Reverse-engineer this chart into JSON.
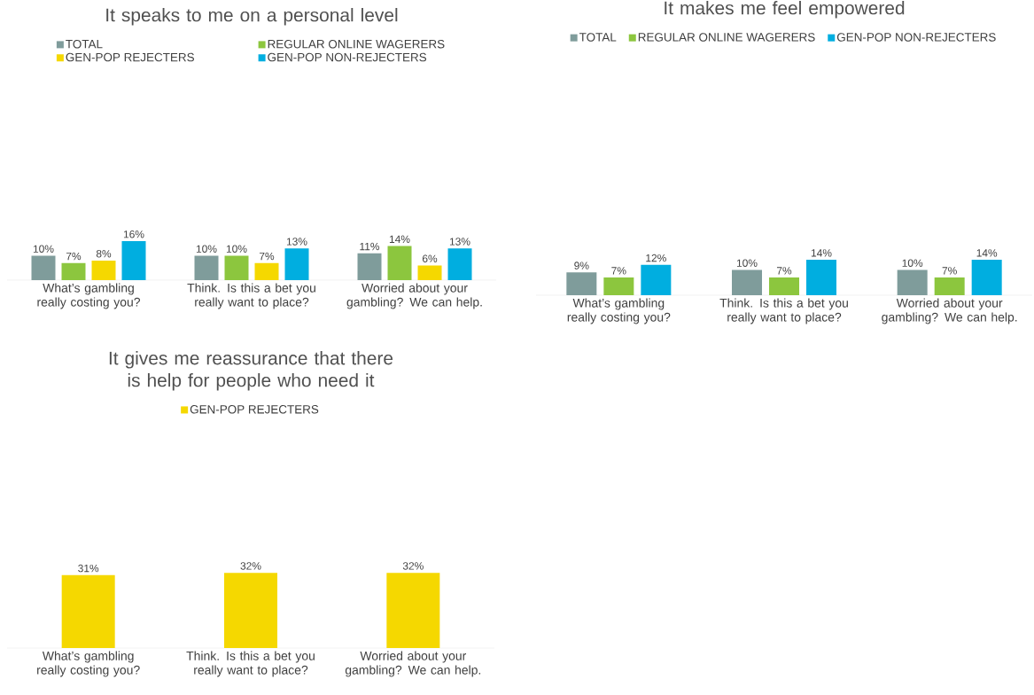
{
  "chart_data": [
    {
      "type": "bar",
      "title": "It speaks to me on a personal level",
      "categories": [
        "What’s gambling really costing you?",
        "Think. Is this a bet you really want to place?",
        "Worried about your gambling? We can help."
      ],
      "legend": "top",
      "series": [
        {
          "name": "TOTAL",
          "color": "#7f9c9b",
          "values": [
            10,
            10,
            11
          ],
          "value_labels": [
            "10%",
            "10%",
            "11%"
          ]
        },
        {
          "name": "REGULAR ONLINE WAGERERS",
          "color": "#8cc63e",
          "values": [
            7,
            10,
            14
          ],
          "value_labels": [
            "7%",
            "10%",
            "14%"
          ]
        },
        {
          "name": "GEN-POP REJECTERS",
          "color": "#f5d800",
          "values": [
            8,
            7,
            6
          ],
          "value_labels": [
            "8%",
            "7%",
            "6%"
          ]
        },
        {
          "name": "GEN-POP NON-REJECTERS",
          "color": "#00aee0",
          "values": [
            16,
            13,
            13
          ],
          "value_labels": [
            "16%",
            "13%",
            "13%"
          ]
        }
      ]
    },
    {
      "type": "bar",
      "title": "It makes me feel empowered",
      "categories": [
        "What’s gambling really costing you?",
        "Think. Is this a bet you really want to place?",
        "Worried about your gambling? We can help."
      ],
      "legend": "top",
      "series": [
        {
          "name": "TOTAL",
          "color": "#7f9c9b",
          "values": [
            9,
            10,
            10
          ],
          "value_labels": [
            "9%",
            "10%",
            "10%"
          ]
        },
        {
          "name": "REGULAR ONLINE WAGERERS",
          "color": "#8cc63e",
          "values": [
            7,
            7,
            7
          ],
          "value_labels": [
            "7%",
            "7%",
            "7%"
          ]
        },
        {
          "name": "GEN-POP NON-REJECTERS",
          "color": "#00aee0",
          "values": [
            12,
            14,
            14
          ],
          "value_labels": [
            "12%",
            "14%",
            "14%"
          ]
        }
      ]
    },
    {
      "type": "bar",
      "title": "It gives me reassurance that there is help for people who need it",
      "categories": [
        "What’s gambling really costing you?",
        "Think. Is this a bet you really want to place?",
        "Worried about your gambling? We can help."
      ],
      "legend": "top",
      "series": [
        {
          "name": "GEN-POP REJECTERS",
          "color": "#f5d800",
          "values": [
            31,
            32,
            32
          ],
          "value_labels": [
            "31%",
            "32%",
            "32%"
          ]
        }
      ]
    }
  ]
}
